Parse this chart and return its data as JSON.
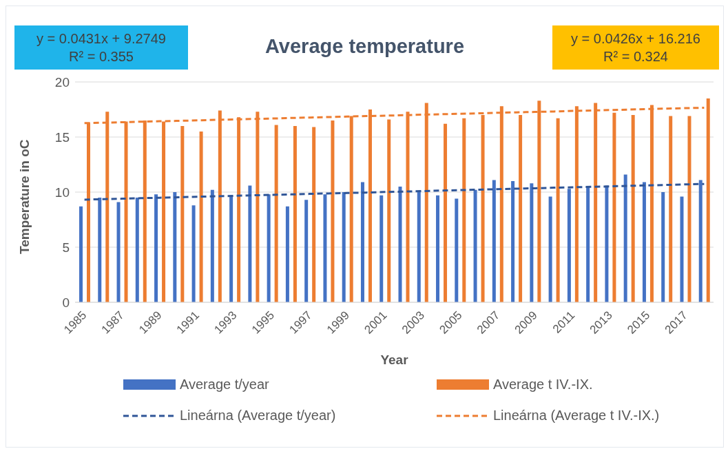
{
  "chart_data": {
    "type": "bar",
    "title": "Average temperature",
    "xlabel": "Year",
    "ylabel": "Temperature in oC",
    "categories": [
      "1985",
      null,
      "1987",
      null,
      "1989",
      null,
      "1991",
      null,
      "1993",
      null,
      "1995",
      null,
      "1997",
      null,
      "1999",
      null,
      "2001",
      null,
      "2003",
      null,
      "2005",
      null,
      "2007",
      null,
      "2009",
      null,
      "2011",
      null,
      "2013",
      null,
      "2015",
      null,
      "2017",
      null
    ],
    "series": [
      {
        "name": "Average t/year",
        "color": "#4472c4",
        "values": [
          8.7,
          9.5,
          9.1,
          9.5,
          9.8,
          10.0,
          8.8,
          10.2,
          9.7,
          10.6,
          9.8,
          8.7,
          9.3,
          9.8,
          10.0,
          10.9,
          9.7,
          10.5,
          10.1,
          9.7,
          9.4,
          10.2,
          11.1,
          11.0,
          10.8,
          9.6,
          10.3,
          10.5,
          10.6,
          11.6,
          10.9,
          10.0,
          9.6,
          11.1
        ]
      },
      {
        "name": "Average t IV.-IX.",
        "color": "#ed7d31",
        "values": [
          16.3,
          17.3,
          16.4,
          16.5,
          16.4,
          16.0,
          15.5,
          17.4,
          16.8,
          17.3,
          16.1,
          16.0,
          15.9,
          16.5,
          16.9,
          17.5,
          16.6,
          17.3,
          18.1,
          16.2,
          16.7,
          17.0,
          17.8,
          17.0,
          18.3,
          16.7,
          17.8,
          18.1,
          17.2,
          17.0,
          17.9,
          16.9,
          16.9,
          18.5
        ]
      },
      {
        "name": "Lineárna (Average t/year)",
        "type": "line",
        "line_style": "dashed",
        "color": "#2f5597",
        "values": [
          9.32,
          9.36,
          9.4,
          9.45,
          9.49,
          9.53,
          9.58,
          9.62,
          9.66,
          9.71,
          9.75,
          9.79,
          9.84,
          9.88,
          9.92,
          9.96,
          10.01,
          10.05,
          10.09,
          10.14,
          10.18,
          10.22,
          10.27,
          10.31,
          10.35,
          10.4,
          10.44,
          10.48,
          10.52,
          10.57,
          10.61,
          10.65,
          10.7,
          10.74
        ]
      },
      {
        "name": "Lineárna (Average t IV.-IX.)",
        "type": "line",
        "line_style": "dashed",
        "color": "#ed7d31",
        "values": [
          16.26,
          16.3,
          16.34,
          16.39,
          16.43,
          16.47,
          16.51,
          16.56,
          16.6,
          16.64,
          16.68,
          16.73,
          16.77,
          16.81,
          16.86,
          16.9,
          16.94,
          16.98,
          17.03,
          17.07,
          17.11,
          17.15,
          17.2,
          17.24,
          17.28,
          17.32,
          17.37,
          17.41,
          17.45,
          17.49,
          17.54,
          17.58,
          17.62,
          17.66
        ]
      }
    ],
    "ylim": [
      0,
      20
    ],
    "yticks": [
      0,
      5,
      10,
      15,
      20
    ],
    "grid": "y",
    "legend": "bottom",
    "marker": "none",
    "annotations": [
      "y = 0.0431x + 9.2749\nR² = 0.355",
      "y = 0.0426x + 16.216\nR² = 0.324"
    ]
  }
}
